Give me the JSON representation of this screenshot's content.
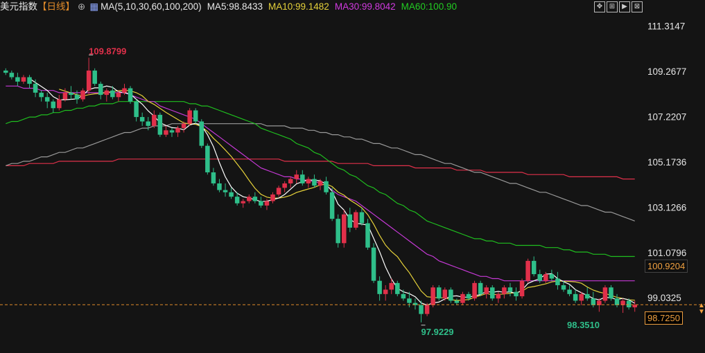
{
  "header": {
    "title": "美元指数",
    "period": "【日线】",
    "ma_label": "MA(5,10,30,60,100,200)",
    "ma5": "MA5:98.8433",
    "ma10": "MA10:99.1482",
    "ma30": "MA30:99.8042",
    "ma60": "MA60:100.90"
  },
  "price_tags": {
    "current": "100.9204",
    "last": "98.7250"
  },
  "annotations": {
    "high": "109.8799",
    "low1": "97.9229",
    "low2": "98.3510"
  },
  "chart_data": {
    "type": "candlestick",
    "y_ticks": [
      "111.3147",
      "109.2677",
      "107.2207",
      "105.1736",
      "103.1266",
      "101.0796",
      "99.0325"
    ],
    "ylim": [
      97.6,
      111.8
    ],
    "colors": {
      "up": "#e0304a",
      "down": "#2fbf8a",
      "ma5": "#ffffff",
      "ma10": "#e6d23a",
      "ma30": "#c639d6",
      "ma60": "#1fbf1f",
      "ma100": "#9a9a9a",
      "ma200": "#e0304a"
    },
    "candles": [
      [
        109.3,
        109.4,
        109.1,
        109.2
      ],
      [
        109.2,
        109.3,
        108.9,
        109.0
      ],
      [
        109.0,
        109.2,
        108.6,
        108.8
      ],
      [
        108.8,
        109.1,
        108.7,
        109.0
      ],
      [
        109.0,
        109.1,
        108.5,
        108.7
      ],
      [
        108.7,
        108.9,
        108.1,
        108.3
      ],
      [
        108.3,
        108.4,
        107.9,
        108.1
      ],
      [
        108.1,
        108.3,
        107.6,
        107.9
      ],
      [
        107.9,
        108.0,
        107.4,
        107.6
      ],
      [
        107.6,
        108.2,
        107.5,
        108.0
      ],
      [
        108.0,
        108.5,
        107.9,
        108.3
      ],
      [
        108.3,
        108.6,
        108.0,
        108.2
      ],
      [
        108.2,
        108.4,
        107.8,
        108.0
      ],
      [
        108.0,
        108.5,
        107.9,
        108.4
      ],
      [
        108.4,
        109.88,
        108.2,
        109.3
      ],
      [
        109.3,
        109.4,
        108.6,
        108.7
      ],
      [
        108.7,
        108.8,
        108.0,
        108.2
      ],
      [
        108.2,
        108.5,
        107.9,
        108.4
      ],
      [
        108.4,
        108.6,
        108.0,
        108.1
      ],
      [
        108.1,
        108.4,
        107.9,
        108.3
      ],
      [
        108.3,
        108.7,
        108.2,
        108.5
      ],
      [
        108.5,
        108.6,
        107.8,
        107.9
      ],
      [
        107.9,
        108.0,
        107.0,
        107.2
      ],
      [
        107.2,
        107.4,
        106.8,
        107.0
      ],
      [
        107.0,
        107.2,
        106.6,
        106.8
      ],
      [
        106.8,
        107.5,
        106.7,
        107.3
      ],
      [
        107.3,
        107.4,
        106.3,
        106.4
      ],
      [
        106.4,
        106.8,
        106.3,
        106.6
      ],
      [
        106.6,
        106.7,
        106.3,
        106.5
      ],
      [
        106.5,
        106.8,
        106.3,
        106.7
      ],
      [
        106.7,
        107.0,
        106.5,
        106.9
      ],
      [
        106.9,
        107.6,
        106.8,
        107.5
      ],
      [
        107.5,
        107.6,
        106.9,
        107.0
      ],
      [
        107.0,
        107.1,
        105.8,
        105.9
      ],
      [
        105.9,
        106.0,
        104.6,
        104.7
      ],
      [
        104.7,
        104.9,
        104.1,
        104.2
      ],
      [
        104.2,
        104.4,
        103.8,
        103.9
      ],
      [
        103.9,
        104.2,
        103.6,
        103.8
      ],
      [
        103.8,
        104.0,
        103.5,
        103.6
      ],
      [
        103.6,
        103.8,
        103.2,
        103.3
      ],
      [
        103.3,
        103.5,
        103.1,
        103.4
      ],
      [
        103.4,
        103.7,
        103.3,
        103.6
      ],
      [
        103.6,
        103.8,
        103.3,
        103.4
      ],
      [
        103.4,
        103.6,
        103.1,
        103.2
      ],
      [
        103.2,
        103.5,
        103.0,
        103.4
      ],
      [
        103.4,
        103.8,
        103.3,
        103.7
      ],
      [
        103.7,
        104.1,
        103.6,
        104.0
      ],
      [
        104.0,
        104.3,
        103.8,
        104.2
      ],
      [
        104.2,
        104.5,
        104.0,
        104.4
      ],
      [
        104.4,
        104.8,
        104.2,
        104.6
      ],
      [
        104.6,
        104.8,
        104.1,
        104.2
      ],
      [
        104.2,
        104.5,
        104.0,
        104.4
      ],
      [
        104.4,
        104.6,
        104.0,
        104.1
      ],
      [
        104.1,
        104.4,
        103.9,
        104.3
      ],
      [
        104.3,
        104.5,
        103.7,
        103.8
      ],
      [
        103.8,
        104.0,
        102.5,
        102.6
      ],
      [
        102.6,
        102.8,
        101.3,
        101.5
      ],
      [
        101.5,
        103.0,
        101.3,
        102.8
      ],
      [
        102.8,
        103.1,
        102.0,
        102.2
      ],
      [
        102.2,
        103.0,
        102.1,
        102.9
      ],
      [
        102.9,
        103.1,
        102.3,
        102.4
      ],
      [
        102.4,
        102.6,
        101.2,
        101.3
      ],
      [
        101.3,
        101.5,
        99.7,
        99.8
      ],
      [
        99.8,
        100.0,
        98.9,
        99.2
      ],
      [
        99.2,
        99.6,
        98.9,
        99.4
      ],
      [
        99.4,
        99.9,
        99.2,
        99.7
      ],
      [
        99.7,
        99.8,
        99.1,
        99.2
      ],
      [
        99.2,
        99.4,
        98.9,
        99.0
      ],
      [
        99.0,
        99.3,
        98.6,
        98.8
      ],
      [
        98.8,
        99.0,
        98.5,
        98.7
      ],
      [
        98.7,
        98.9,
        97.92,
        98.3
      ],
      [
        98.3,
        98.8,
        98.2,
        98.7
      ],
      [
        98.7,
        99.6,
        98.6,
        99.5
      ],
      [
        99.5,
        99.6,
        98.9,
        99.0
      ],
      [
        99.0,
        99.5,
        98.9,
        99.4
      ],
      [
        99.4,
        99.5,
        98.8,
        98.9
      ],
      [
        98.9,
        99.0,
        98.7,
        98.8
      ],
      [
        98.8,
        99.3,
        98.7,
        99.2
      ],
      [
        99.2,
        99.3,
        98.9,
        99.0
      ],
      [
        99.0,
        99.8,
        98.9,
        99.7
      ],
      [
        99.7,
        99.8,
        99.1,
        99.2
      ],
      [
        99.2,
        99.6,
        99.0,
        99.5
      ],
      [
        99.5,
        99.6,
        98.9,
        99.0
      ],
      [
        99.0,
        99.3,
        98.8,
        99.2
      ],
      [
        99.2,
        99.6,
        99.0,
        99.5
      ],
      [
        99.5,
        99.7,
        99.1,
        99.3
      ],
      [
        99.3,
        99.5,
        98.9,
        99.1
      ],
      [
        99.1,
        99.9,
        99.0,
        99.8
      ],
      [
        99.8,
        100.8,
        99.7,
        100.7
      ],
      [
        100.7,
        100.9,
        100.0,
        100.1
      ],
      [
        100.1,
        100.3,
        99.7,
        99.8
      ],
      [
        99.8,
        100.2,
        99.7,
        100.1
      ],
      [
        100.1,
        100.3,
        99.8,
        99.9
      ],
      [
        99.9,
        100.2,
        99.4,
        99.6
      ],
      [
        99.6,
        99.8,
        99.3,
        99.4
      ],
      [
        99.4,
        99.6,
        99.1,
        99.2
      ],
      [
        99.2,
        99.4,
        98.8,
        98.9
      ],
      [
        98.9,
        99.3,
        98.7,
        99.2
      ],
      [
        99.2,
        99.5,
        98.9,
        99.0
      ],
      [
        99.0,
        99.3,
        98.6,
        98.7
      ],
      [
        98.7,
        99.0,
        98.4,
        98.9
      ],
      [
        98.9,
        99.6,
        98.8,
        99.5
      ],
      [
        99.5,
        99.6,
        98.9,
        99.0
      ],
      [
        99.0,
        99.2,
        98.6,
        98.7
      ],
      [
        98.7,
        99.0,
        98.35,
        98.9
      ],
      [
        98.9,
        99.0,
        98.5,
        98.6
      ],
      [
        98.6,
        98.9,
        98.4,
        98.72
      ]
    ],
    "ma30": [
      108.6,
      108.6,
      108.6,
      108.5,
      108.5,
      108.5,
      108.4,
      108.4,
      108.4,
      108.3,
      108.3,
      108.3,
      108.3,
      108.3,
      108.3,
      108.3,
      108.3,
      108.3,
      108.3,
      108.3,
      108.3,
      108.2,
      108.1,
      108.0,
      107.9,
      107.9,
      107.7,
      107.6,
      107.5,
      107.4,
      107.3,
      107.2,
      107.1,
      106.9,
      106.7,
      106.5,
      106.3,
      106.1,
      105.9,
      105.7,
      105.5,
      105.3,
      105.1,
      104.9,
      104.8,
      104.7,
      104.6,
      104.5,
      104.5,
      104.4,
      104.4,
      104.3,
      104.3,
      104.2,
      104.1,
      103.9,
      103.7,
      103.6,
      103.5,
      103.4,
      103.2,
      103.0,
      102.8,
      102.6,
      102.4,
      102.2,
      102.0,
      101.8,
      101.6,
      101.4,
      101.2,
      101.0,
      100.9,
      100.7,
      100.6,
      100.5,
      100.4,
      100.3,
      100.2,
      100.1,
      100.0,
      100.0,
      99.9,
      99.9,
      99.8,
      99.8,
      99.8,
      99.8,
      99.8,
      99.8,
      99.8,
      99.8,
      99.8,
      99.8,
      99.8,
      99.8,
      99.8,
      99.8,
      99.8,
      99.8,
      99.8,
      99.8,
      99.8,
      99.8,
      99.8,
      99.8,
      99.8
    ],
    "ma60": [
      106.9,
      107.0,
      107.0,
      107.1,
      107.2,
      107.2,
      107.3,
      107.3,
      107.4,
      107.4,
      107.5,
      107.5,
      107.6,
      107.6,
      107.7,
      107.7,
      107.8,
      107.8,
      107.8,
      107.9,
      107.9,
      107.9,
      107.9,
      107.9,
      107.9,
      107.9,
      107.9,
      107.9,
      107.9,
      107.9,
      107.9,
      107.8,
      107.8,
      107.7,
      107.7,
      107.6,
      107.5,
      107.4,
      107.3,
      107.2,
      107.1,
      107.0,
      106.9,
      106.7,
      106.6,
      106.5,
      106.4,
      106.3,
      106.2,
      106.0,
      105.9,
      105.8,
      105.6,
      105.5,
      105.3,
      105.1,
      104.9,
      104.8,
      104.6,
      104.5,
      104.3,
      104.1,
      104.0,
      103.8,
      103.7,
      103.5,
      103.3,
      103.2,
      103.0,
      102.9,
      102.7,
      102.5,
      102.4,
      102.3,
      102.2,
      102.1,
      102.0,
      101.9,
      101.8,
      101.7,
      101.7,
      101.6,
      101.6,
      101.5,
      101.5,
      101.5,
      101.4,
      101.4,
      101.4,
      101.4,
      101.4,
      101.3,
      101.3,
      101.3,
      101.2,
      101.2,
      101.1,
      101.1,
      101.1,
      101.0,
      101.0,
      101.0,
      100.9,
      100.9,
      100.9,
      100.9,
      100.9
    ],
    "ma100": [
      105.0,
      105.1,
      105.1,
      105.2,
      105.2,
      105.3,
      105.4,
      105.4,
      105.5,
      105.6,
      105.6,
      105.7,
      105.8,
      105.8,
      105.9,
      106.0,
      106.1,
      106.2,
      106.3,
      106.4,
      106.5,
      106.5,
      106.6,
      106.7,
      106.7,
      106.8,
      106.8,
      106.8,
      106.9,
      106.9,
      106.9,
      106.9,
      106.9,
      106.9,
      106.9,
      106.9,
      106.9,
      106.9,
      106.9,
      106.9,
      106.9,
      106.9,
      106.9,
      106.9,
      106.8,
      106.8,
      106.8,
      106.8,
      106.7,
      106.7,
      106.7,
      106.6,
      106.6,
      106.5,
      106.5,
      106.4,
      106.4,
      106.3,
      106.3,
      106.2,
      106.2,
      106.1,
      106.0,
      106.0,
      105.9,
      105.8,
      105.8,
      105.7,
      105.6,
      105.5,
      105.5,
      105.4,
      105.3,
      105.2,
      105.1,
      105.1,
      105.0,
      104.9,
      104.8,
      104.7,
      104.7,
      104.6,
      104.5,
      104.4,
      104.3,
      104.2,
      104.2,
      104.1,
      104.0,
      103.9,
      103.8,
      103.8,
      103.7,
      103.6,
      103.5,
      103.4,
      103.3,
      103.2,
      103.2,
      103.1,
      103.0,
      102.9,
      102.9,
      102.8,
      102.7,
      102.6,
      102.5
    ],
    "ma200": [
      105.0,
      105.0,
      105.0,
      105.0,
      105.1,
      105.1,
      105.1,
      105.1,
      105.1,
      105.2,
      105.2,
      105.2,
      105.2,
      105.2,
      105.2,
      105.2,
      105.2,
      105.2,
      105.2,
      105.3,
      105.3,
      105.3,
      105.3,
      105.3,
      105.3,
      105.3,
      105.3,
      105.3,
      105.3,
      105.3,
      105.3,
      105.3,
      105.3,
      105.3,
      105.3,
      105.3,
      105.3,
      105.3,
      105.3,
      105.3,
      105.3,
      105.3,
      105.3,
      105.3,
      105.3,
      105.3,
      105.3,
      105.2,
      105.2,
      105.2,
      105.2,
      105.2,
      105.2,
      105.2,
      105.2,
      105.2,
      105.1,
      105.1,
      105.1,
      105.1,
      105.1,
      105.1,
      105.0,
      105.0,
      105.0,
      105.0,
      105.0,
      105.0,
      105.0,
      104.9,
      104.9,
      104.9,
      104.9,
      104.9,
      104.9,
      104.9,
      104.8,
      104.8,
      104.8,
      104.8,
      104.8,
      104.7,
      104.7,
      104.7,
      104.7,
      104.7,
      104.7,
      104.7,
      104.6,
      104.6,
      104.6,
      104.6,
      104.6,
      104.6,
      104.6,
      104.5,
      104.5,
      104.5,
      104.5,
      104.5,
      104.5,
      104.5,
      104.5,
      104.5,
      104.4,
      104.4,
      104.4
    ]
  }
}
